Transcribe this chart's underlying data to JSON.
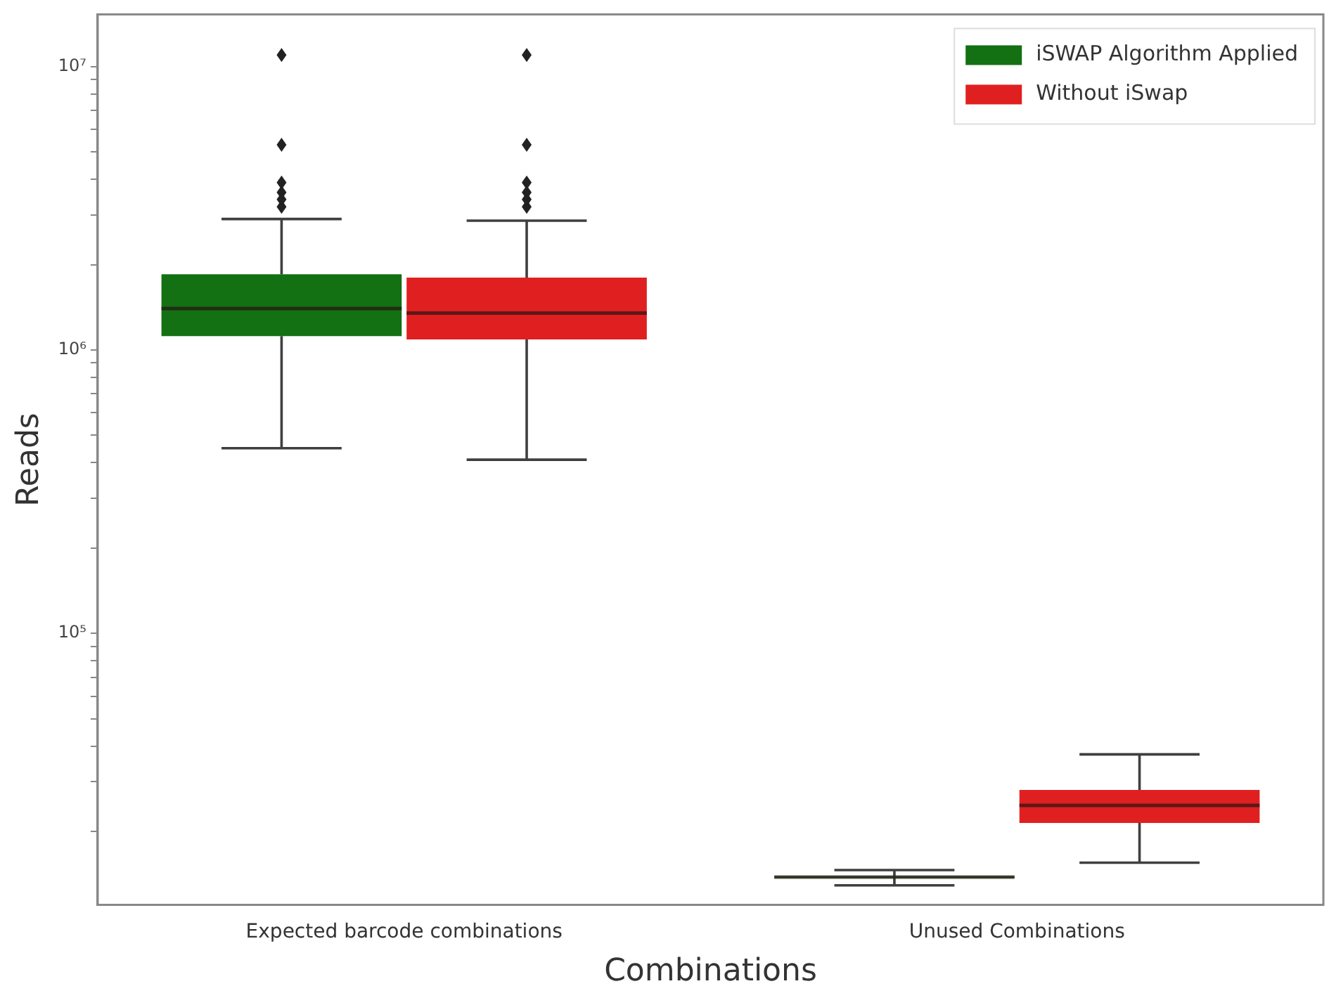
{
  "chart_data": {
    "type": "box",
    "xlabel": "Combinations",
    "ylabel": "Reads",
    "categories": [
      "Expected barcode combinations",
      "Unused Combinations"
    ],
    "series": [
      {
        "name": "iSWAP Algorithm Applied",
        "color": "#137013",
        "boxes": [
          {
            "low": 450000,
            "q1": 1120000,
            "median": 1400000,
            "q3": 1850000,
            "high": 2900000,
            "outliers": [
              3200000,
              3400000,
              3600000,
              3900000,
              5300000,
              11000000
            ]
          },
          {
            "low": 12900,
            "q1": 13700,
            "median": 13800,
            "q3": 13900,
            "high": 14600
          }
        ]
      },
      {
        "name": "Without iSwap",
        "color": "#e02020",
        "boxes": [
          {
            "low": 410000,
            "q1": 1090000,
            "median": 1350000,
            "q3": 1800000,
            "high": 2860000,
            "outliers": [
              3200000,
              3400000,
              3600000,
              3900000,
              5300000,
              11000000
            ]
          },
          {
            "low": 15500,
            "q1": 21400,
            "median": 24700,
            "q3": 28000,
            "high": 37400
          }
        ]
      }
    ],
    "log": true,
    "ylim": [
      11000,
      15300000
    ],
    "yticks": [
      {
        "value": 20000,
        "label": null
      },
      {
        "value": 30000,
        "label": null
      },
      {
        "value": 40000,
        "label": null
      },
      {
        "value": 50000,
        "label": null
      },
      {
        "value": 60000,
        "label": null
      },
      {
        "value": 70000,
        "label": null
      },
      {
        "value": 80000,
        "label": null
      },
      {
        "value": 90000,
        "label": null
      },
      {
        "value": 100000,
        "label": "10⁵"
      },
      {
        "value": 200000,
        "label": null
      },
      {
        "value": 300000,
        "label": null
      },
      {
        "value": 400000,
        "label": null
      },
      {
        "value": 500000,
        "label": null
      },
      {
        "value": 600000,
        "label": null
      },
      {
        "value": 700000,
        "label": null
      },
      {
        "value": 800000,
        "label": null
      },
      {
        "value": 900000,
        "label": null
      },
      {
        "value": 1000000,
        "label": "10⁶"
      },
      {
        "value": 2000000,
        "label": null
      },
      {
        "value": 3000000,
        "label": null
      },
      {
        "value": 4000000,
        "label": null
      },
      {
        "value": 5000000,
        "label": null
      },
      {
        "value": 6000000,
        "label": null
      },
      {
        "value": 7000000,
        "label": null
      },
      {
        "value": 8000000,
        "label": null
      },
      {
        "value": 9000000,
        "label": null
      },
      {
        "value": 10000000,
        "label": "10⁷"
      }
    ],
    "grid": false,
    "legend": "top right"
  }
}
